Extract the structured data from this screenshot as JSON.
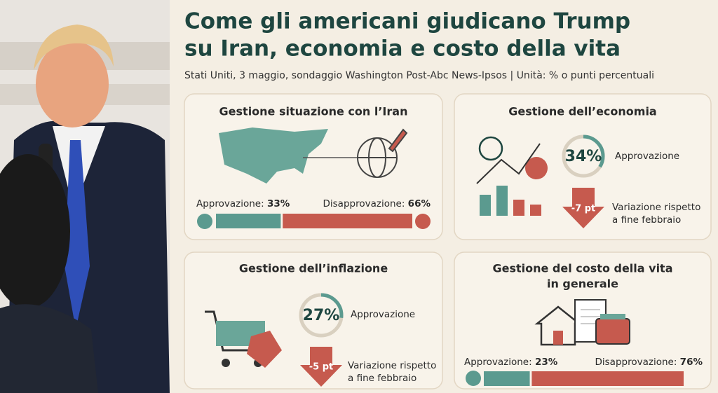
{
  "header": {
    "title_lines": [
      "Come gli americani giudicano Trump",
      "su Iran, economia e costo della vita"
    ],
    "subtitle": "Stati Uniti, 3 maggio, sondaggio Washington Post-Abc News-Ipsos | Unità: % o punti percentuali"
  },
  "panels": [
    {
      "title_lines": [
        "Gestione situazione con l’Iran"
      ],
      "approve": {
        "label": "Approvazione:",
        "value": 33,
        "value_label": "33%"
      },
      "disapprove": {
        "label": "Disapprovazione:",
        "value": 66,
        "value_label": "66%"
      }
    },
    {
      "title_lines": [
        "Gestione dell’economia"
      ],
      "approval": {
        "label": "Approvazione",
        "value": 34,
        "value_label": "34%"
      },
      "change": {
        "label_lines": [
          "Variazione rispetto",
          "a fine febbraio"
        ],
        "value": -7,
        "value_label": "-7 pt"
      }
    },
    {
      "title_lines": [
        "Gestione dell’inflazione"
      ],
      "approval": {
        "label": "Approvazione",
        "value": 27,
        "value_label": "27%"
      },
      "change": {
        "label_lines": [
          "Variazione rispetto",
          "a fine febbraio"
        ],
        "value": -5,
        "value_label": "-5 pt"
      }
    },
    {
      "title_lines": [
        "Gestione del costo della vita",
        "in generale"
      ],
      "approve": {
        "label": "Approvazione:",
        "value": 23,
        "value_label": "23%"
      },
      "disapprove": {
        "label": "Disapprovazione:",
        "value": 76,
        "value_label": "76%"
      }
    }
  ]
}
